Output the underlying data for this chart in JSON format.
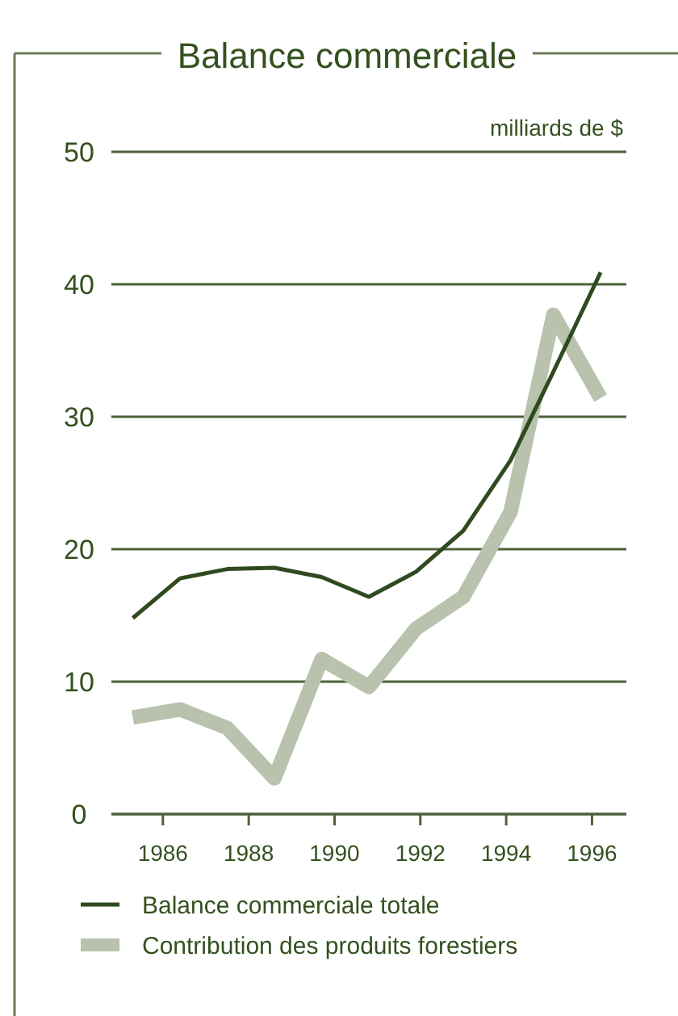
{
  "chart_data": {
    "type": "line",
    "title": "Balance commerciale",
    "ylabel": "milliards de $",
    "x": [
      1985.3,
      1986.4,
      1987.5,
      1988.6,
      1989.7,
      1990.8,
      1991.9,
      1993.0,
      1994.1,
      1995.1,
      1996.2
    ],
    "series": [
      {
        "name": "Balance commerciale totale",
        "color": "#2f4a1f",
        "values": [
          14.8,
          17.8,
          18.5,
          18.6,
          17.9,
          16.4,
          18.3,
          21.4,
          26.7,
          33.4,
          40.9
        ]
      },
      {
        "name": "Contribution des produits forestiers",
        "color": "#b8c2ad",
        "values": [
          7.3,
          7.9,
          6.5,
          2.7,
          11.7,
          9.6,
          14.0,
          16.4,
          22.8,
          37.7,
          31.4
        ]
      }
    ],
    "xlim": [
      1984.8,
      1996.8
    ],
    "xticks": [
      1986,
      1988,
      1990,
      1992,
      1994,
      1996
    ],
    "ylim": [
      0,
      50
    ],
    "yticks": [
      0,
      10,
      20,
      30,
      40,
      50
    ],
    "grid": "y",
    "legend": "bottom",
    "marker": "none",
    "line_style": "solid"
  }
}
